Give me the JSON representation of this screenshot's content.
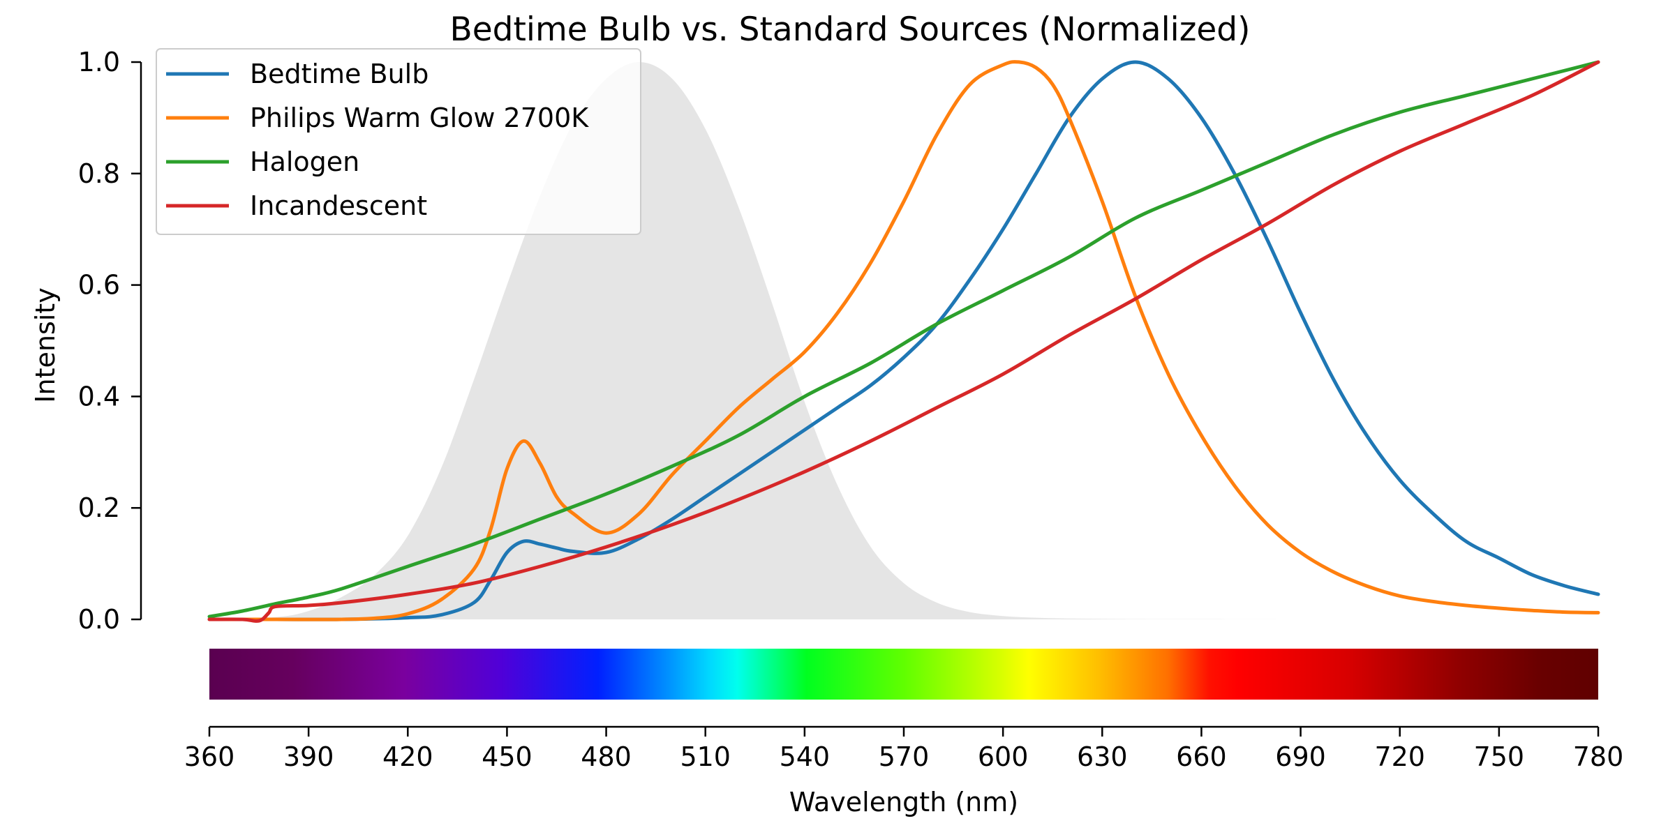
{
  "chart_data": {
    "type": "line",
    "title": "Bedtime Bulb vs. Standard Sources (Normalized)",
    "xlabel": "Wavelength (nm)",
    "ylabel": "Intensity",
    "xlim": [
      360,
      780
    ],
    "ylim": [
      0,
      1.0
    ],
    "x_ticks": [
      "360",
      "390",
      "420",
      "450",
      "480",
      "510",
      "540",
      "570",
      "600",
      "630",
      "660",
      "690",
      "720",
      "750",
      "780"
    ],
    "y_ticks": [
      "0.0",
      "0.2",
      "0.4",
      "0.6",
      "0.8",
      "1.0"
    ],
    "grid": false,
    "legend": "top-left",
    "background_band": {
      "description_color": "#e5e5e5",
      "x": [
        360,
        380,
        390,
        400,
        410,
        420,
        430,
        440,
        450,
        460,
        470,
        480,
        490,
        500,
        510,
        520,
        530,
        540,
        550,
        560,
        570,
        580,
        590,
        600,
        610,
        620,
        630,
        640,
        660,
        700,
        780
      ],
      "y": [
        0,
        0.004,
        0.015,
        0.04,
        0.08,
        0.15,
        0.27,
        0.43,
        0.6,
        0.76,
        0.89,
        0.97,
        1.0,
        0.97,
        0.88,
        0.74,
        0.57,
        0.39,
        0.24,
        0.13,
        0.065,
        0.03,
        0.013,
        0.006,
        0.003,
        0.0015,
        0.001,
        0.0005,
        0.0002,
        0,
        0
      ]
    },
    "series": [
      {
        "name": "Bedtime Bulb",
        "color": "#1f77b4",
        "x": [
          360,
          380,
          400,
          420,
          430,
          440,
          445,
          450,
          455,
          460,
          465,
          470,
          480,
          490,
          500,
          510,
          520,
          530,
          540,
          550,
          560,
          570,
          580,
          590,
          600,
          610,
          620,
          630,
          640,
          650,
          660,
          670,
          680,
          690,
          700,
          710,
          720,
          730,
          740,
          750,
          760,
          770,
          780
        ],
        "y": [
          0.0,
          0.0,
          0.0,
          0.003,
          0.008,
          0.03,
          0.07,
          0.12,
          0.14,
          0.135,
          0.128,
          0.122,
          0.12,
          0.145,
          0.18,
          0.22,
          0.26,
          0.3,
          0.34,
          0.38,
          0.42,
          0.47,
          0.53,
          0.61,
          0.7,
          0.8,
          0.9,
          0.97,
          1.0,
          0.97,
          0.9,
          0.8,
          0.68,
          0.55,
          0.43,
          0.33,
          0.25,
          0.19,
          0.14,
          0.11,
          0.08,
          0.06,
          0.045
        ]
      },
      {
        "name": "Philips Warm Glow 2700K",
        "color": "#ff7f0e",
        "x": [
          360,
          380,
          400,
          410,
          420,
          430,
          440,
          445,
          450,
          455,
          460,
          465,
          470,
          480,
          490,
          500,
          510,
          520,
          530,
          540,
          550,
          560,
          570,
          580,
          590,
          600,
          605,
          610,
          615,
          620,
          630,
          640,
          650,
          660,
          670,
          680,
          690,
          700,
          710,
          720,
          730,
          740,
          750,
          760,
          770,
          780
        ],
        "y": [
          0.0,
          0.0,
          0.0,
          0.002,
          0.01,
          0.035,
          0.09,
          0.16,
          0.27,
          0.32,
          0.28,
          0.22,
          0.19,
          0.155,
          0.19,
          0.26,
          0.32,
          0.38,
          0.43,
          0.48,
          0.55,
          0.64,
          0.75,
          0.87,
          0.96,
          0.995,
          1.0,
          0.99,
          0.96,
          0.9,
          0.75,
          0.58,
          0.44,
          0.33,
          0.24,
          0.17,
          0.12,
          0.085,
          0.06,
          0.042,
          0.032,
          0.025,
          0.02,
          0.016,
          0.013,
          0.012
        ]
      },
      {
        "name": "Halogen",
        "color": "#2ca02c",
        "x": [
          360,
          370,
          380,
          390,
          400,
          420,
          440,
          460,
          480,
          500,
          520,
          540,
          560,
          580,
          600,
          620,
          640,
          660,
          680,
          700,
          720,
          740,
          760,
          780
        ],
        "y": [
          0.005,
          0.015,
          0.028,
          0.04,
          0.055,
          0.095,
          0.135,
          0.18,
          0.225,
          0.275,
          0.33,
          0.4,
          0.46,
          0.53,
          0.59,
          0.65,
          0.72,
          0.77,
          0.82,
          0.87,
          0.91,
          0.94,
          0.97,
          1.0
        ]
      },
      {
        "name": "Incandescent",
        "color": "#d62728",
        "x": [
          360,
          370,
          374,
          376,
          378,
          380,
          390,
          400,
          420,
          440,
          460,
          480,
          500,
          520,
          540,
          560,
          580,
          600,
          620,
          640,
          660,
          680,
          700,
          720,
          740,
          760,
          780
        ],
        "y": [
          0.0,
          0.0,
          -0.003,
          0.0,
          0.012,
          0.023,
          0.025,
          0.03,
          0.045,
          0.065,
          0.095,
          0.13,
          0.17,
          0.215,
          0.265,
          0.32,
          0.38,
          0.44,
          0.51,
          0.575,
          0.645,
          0.71,
          0.78,
          0.84,
          0.89,
          0.94,
          1.0
        ]
      }
    ]
  }
}
